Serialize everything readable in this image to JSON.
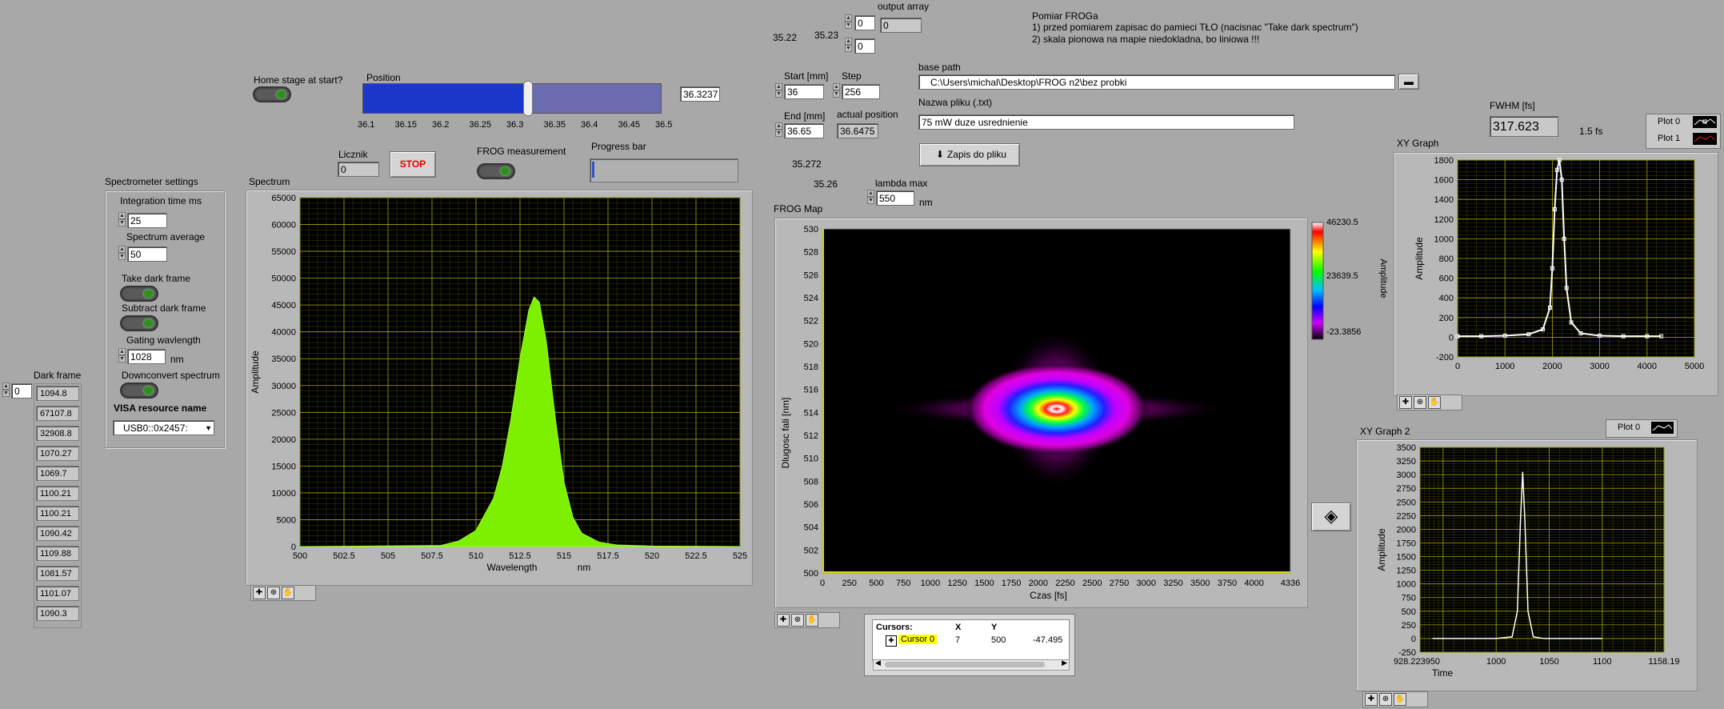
{
  "top": {
    "v1": "35.22",
    "v2": "35.23",
    "output_array_label": "output array",
    "idx1": "0",
    "idx2": "0",
    "out_val": "0",
    "notes": [
      "Pomiar FROGa",
      "1) przed pomiarem zapisac do pamieci TŁO (nacisnac \"Take dark spectrum\")",
      "2) skala pionowa na mapie niedokladna, bo liniowa !!!"
    ]
  },
  "stage": {
    "home_label": "Home stage at start?",
    "position_label": "Position",
    "position_value": "36.3237",
    "position_fraction": 0.55,
    "ticks": [
      "36.1",
      "36.15",
      "36.2",
      "36.25",
      "36.3",
      "36.35",
      "36.4",
      "36.45",
      "36.5"
    ]
  },
  "scan": {
    "start_label": "Start [mm]",
    "start_value": "36",
    "step_label": "Step",
    "step_value": "256",
    "end_label": "End [mm]",
    "end_value": "36.65",
    "actual_label": "actual position",
    "actual_value": "36.6475",
    "v3": "35.272",
    "v4": "35.26",
    "lambda_label": "lambda max",
    "lambda_value": "550",
    "lambda_unit": "nm"
  },
  "file": {
    "base_path_label": "base path",
    "base_path_value": "C:\\Users\\michal\\Desktop\\FROG n2\\bez probki",
    "name_label": "Nazwa pliku (.txt)",
    "name_value": "75 mW duze usrednienie",
    "save_label": "Zapis do pliku"
  },
  "run": {
    "licznik_label": "Licznik",
    "licznik_value": "0",
    "stop_label": "STOP",
    "frog_label": "FROG measurement",
    "progress_label": "Progress bar",
    "progress_fraction": 0.0
  },
  "spectrometer": {
    "title": "Spectrometer settings",
    "integration_label": "Integration time ms",
    "integration_value": "25",
    "average_label": "Spectrum average",
    "average_value": "50",
    "take_dark_label": "Take dark frame",
    "subtract_dark_label": "Subtract dark frame",
    "gating_label": "Gating wavlength",
    "gating_value": "1028",
    "gating_unit": "nm",
    "downconvert_label": "Downconvert spectrum",
    "visa_label": "VISA resource name",
    "visa_value": "USB0::0x2457:"
  },
  "dark_frame": {
    "label": "Dark frame",
    "index": "0",
    "values": [
      "1094.8",
      "67107.8",
      "32908.8",
      "1070.27",
      "1069.7",
      "1100.21",
      "1100.21",
      "1090.42",
      "1109.88",
      "1081.57",
      "1101.07",
      "1090.3"
    ]
  },
  "fwhm": {
    "label": "FWHM [fs]",
    "value": "317.623",
    "extra": "1.5 fs"
  },
  "legend1": [
    "Plot 0",
    "Plot 1"
  ],
  "legend2": [
    "Plot 0"
  ],
  "cursors": {
    "title": "Cursors:",
    "x_label": "X",
    "y_label": "Y",
    "name": "Cursor 0",
    "x": "7",
    "y": "500",
    "z": "-47.495"
  },
  "colors": {
    "spectrum_fill": "#7df000",
    "grid": "#7a7a00",
    "xy_line": "#ffffff"
  },
  "chart_data": [
    {
      "type": "area",
      "title": "Spectrum",
      "xlabel": "Wavelength",
      "xunit": "nm",
      "ylabel": "Amplitude",
      "xlim": [
        500,
        525
      ],
      "ylim": [
        0,
        65000
      ],
      "xticks": [
        "500",
        "502.5",
        "505",
        "507.5",
        "510",
        "512.5",
        "515",
        "517.5",
        "520",
        "522.5",
        "525"
      ],
      "yticks": [
        "0",
        "5000",
        "10000",
        "15000",
        "20000",
        "25000",
        "30000",
        "35000",
        "40000",
        "45000",
        "50000",
        "55000",
        "60000",
        "65000"
      ],
      "x": [
        500,
        508,
        509,
        510,
        511,
        511.5,
        512,
        512.5,
        513,
        513.3,
        513.6,
        514,
        514.5,
        515,
        515.5,
        516,
        517,
        518,
        520,
        525
      ],
      "y": [
        0,
        200,
        1000,
        3000,
        9000,
        15000,
        24000,
        35000,
        44000,
        46500,
        45500,
        38000,
        24000,
        12000,
        5500,
        2500,
        800,
        300,
        100,
        0
      ]
    },
    {
      "type": "heatmap",
      "title": "FROG Map",
      "xlabel": "Czas [fs]",
      "ylabel": "Dlugosc fali [nm]",
      "xlim": [
        0,
        4336
      ],
      "ylim": [
        500,
        530
      ],
      "xticks": [
        "0",
        "250",
        "500",
        "750",
        "1000",
        "1250",
        "1500",
        "1750",
        "2000",
        "2250",
        "2500",
        "2750",
        "3000",
        "3250",
        "3500",
        "3750",
        "4000",
        "4336"
      ],
      "yticks": [
        "500",
        "502",
        "504",
        "506",
        "508",
        "510",
        "512",
        "514",
        "516",
        "518",
        "520",
        "522",
        "524",
        "526",
        "528",
        "530"
      ],
      "colorbar_label": "Amplitude",
      "colorbar_ticks": [
        "46230.5",
        "23639.5",
        "-23.3856"
      ],
      "peak": {
        "x": 2170,
        "y": 514.3
      }
    },
    {
      "type": "line",
      "title": "XY Graph",
      "ylabel": "Amplitude",
      "xlim": [
        0,
        5000
      ],
      "ylim": [
        -200,
        1800
      ],
      "xticks": [
        "0",
        "1000",
        "2000",
        "3000",
        "4000",
        "5000"
      ],
      "yticks": [
        "-200",
        "0",
        "200",
        "400",
        "600",
        "800",
        "1000",
        "1200",
        "1400",
        "1600",
        "1800"
      ],
      "x": [
        0,
        500,
        1000,
        1500,
        1800,
        1950,
        2000,
        2050,
        2100,
        2150,
        2200,
        2250,
        2300,
        2400,
        2600,
        3000,
        3500,
        4000,
        4300
      ],
      "y": [
        10,
        10,
        15,
        30,
        80,
        300,
        700,
        1300,
        1700,
        1800,
        1600,
        1000,
        500,
        150,
        40,
        15,
        10,
        10,
        10
      ]
    },
    {
      "type": "line",
      "title": "XY Graph 2",
      "xlabel": "Time",
      "ylabel": "Amplitude",
      "xlim": [
        928.22395,
        1158.19
      ],
      "ylim": [
        -250,
        3500
      ],
      "xtick_left": "928.223950",
      "xtick_right": "1158.19",
      "xticks": [
        "1000",
        "1050",
        "1100"
      ],
      "yticks": [
        "-250",
        "0",
        "250",
        "500",
        "750",
        "1000",
        "1250",
        "1500",
        "1750",
        "2000",
        "2250",
        "2500",
        "2750",
        "3000",
        "3250",
        "3500"
      ],
      "x": [
        940,
        1000,
        1015,
        1020,
        1023,
        1025,
        1027,
        1030,
        1035,
        1045,
        1100
      ],
      "y": [
        0,
        0,
        30,
        500,
        2200,
        3050,
        2200,
        500,
        30,
        0,
        0
      ]
    }
  ]
}
